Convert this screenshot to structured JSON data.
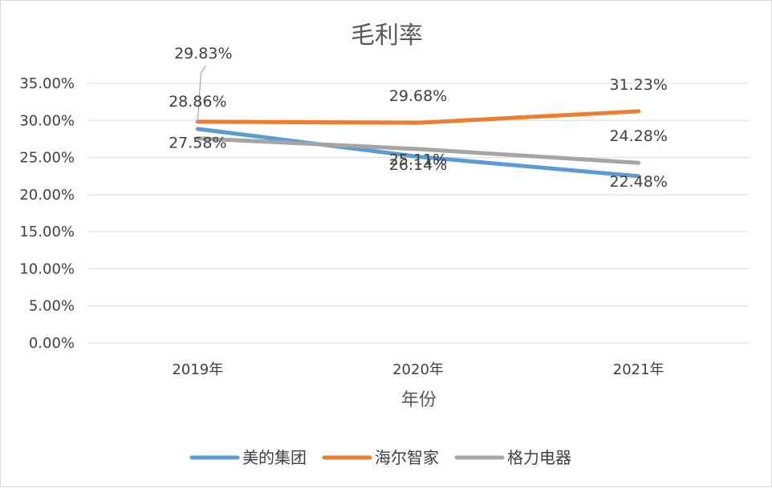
{
  "chart_data": {
    "type": "line",
    "title": "毛利率",
    "xlabel": "年份",
    "ylabel": "",
    "categories": [
      "2019年",
      "2020年",
      "2021年"
    ],
    "y_ticks": [
      "0.00%",
      "5.00%",
      "10.00%",
      "15.00%",
      "20.00%",
      "25.00%",
      "30.00%",
      "35.00%"
    ],
    "ylim": [
      0,
      35
    ],
    "grid": true,
    "legend_position": "bottom",
    "series": [
      {
        "name": "美的集团",
        "color": "#5b9bd5",
        "values": [
          28.86,
          25.11,
          22.48
        ],
        "labels": [
          "28.86%",
          "25.11%",
          "22.48%"
        ]
      },
      {
        "name": "海尔智家",
        "color": "#ed7d31",
        "values": [
          29.83,
          29.68,
          31.23
        ],
        "labels": [
          "29.83%",
          "29.68%",
          "31.23%"
        ]
      },
      {
        "name": "格力电器",
        "color": "#a5a5a5",
        "values": [
          27.58,
          26.14,
          24.28
        ],
        "labels": [
          "27.58%",
          "26.14%",
          "24.28%"
        ]
      }
    ]
  }
}
